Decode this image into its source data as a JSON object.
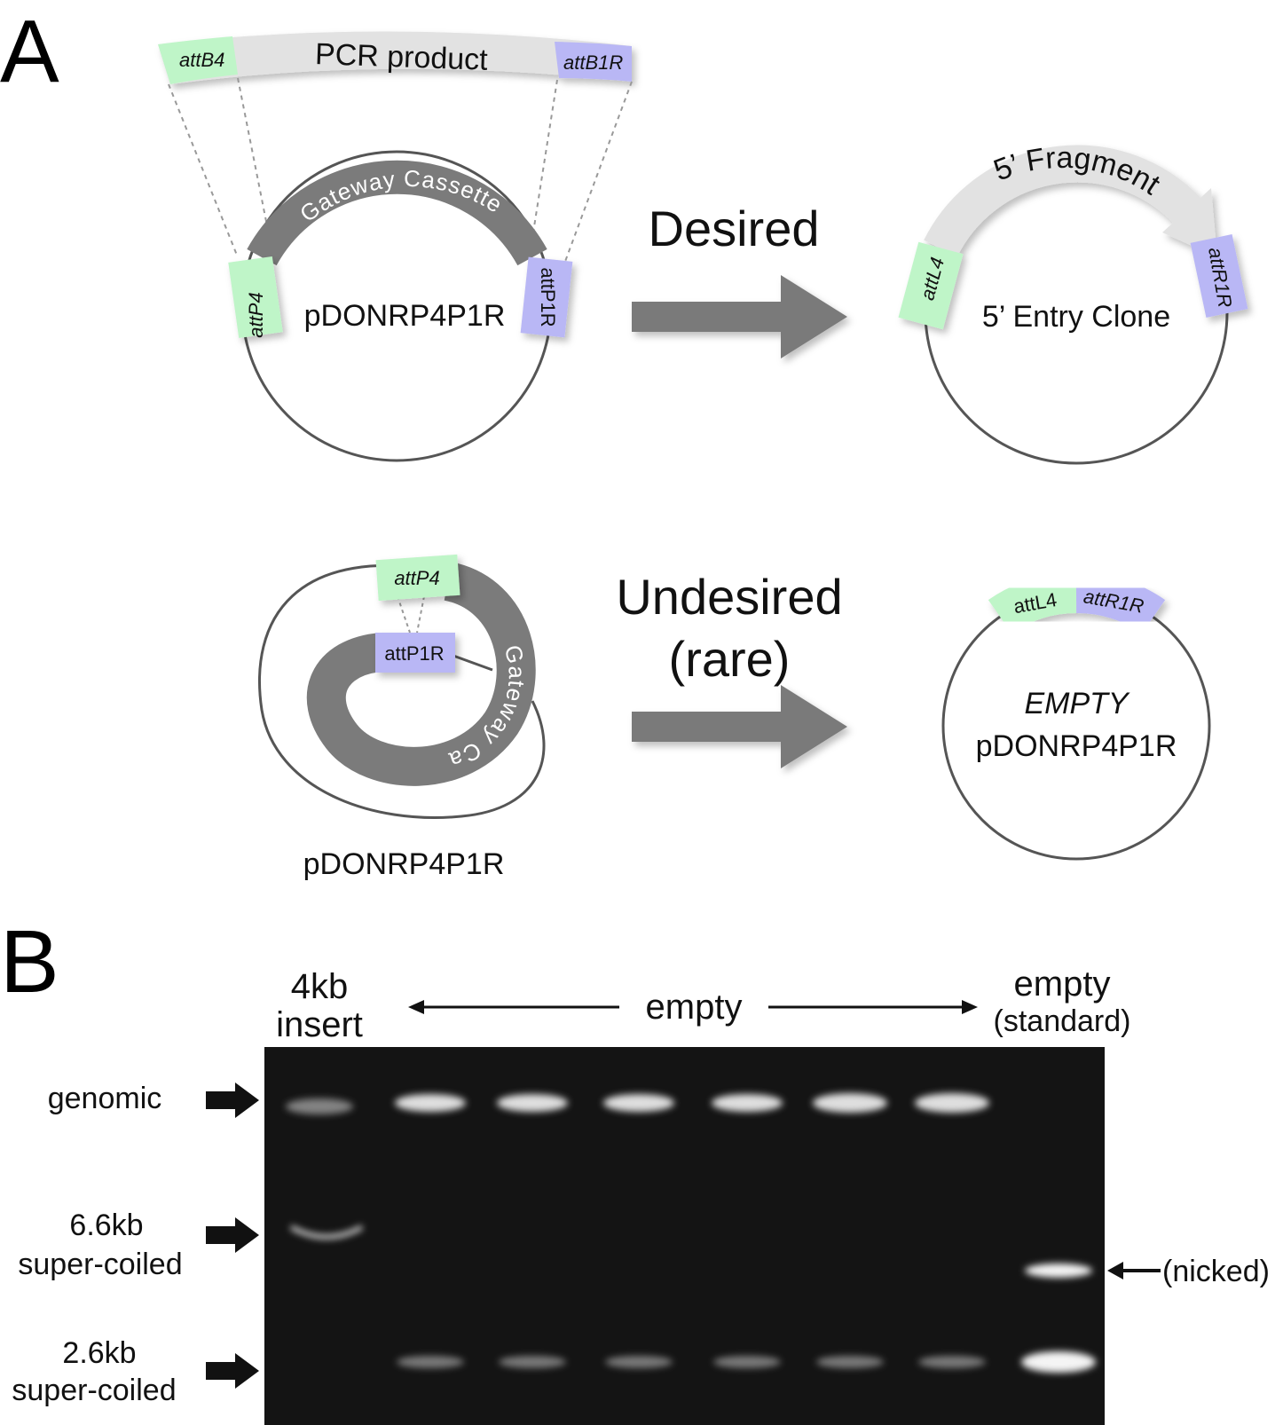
{
  "panel_a": {
    "label": "A",
    "pcr_product": {
      "label": "PCR product",
      "left_site": "attB4",
      "right_site": "attB1R"
    },
    "donor": {
      "name": "pDONRP4P1R",
      "cassette": "Gateway Cassette",
      "left_site": "attP4",
      "right_site": "attP1R"
    },
    "desired_arrow": "Desired",
    "entry_clone": {
      "name": "5’ Entry Clone",
      "fragment": "5’ Fragment",
      "left_site": "attL4",
      "right_site": "attR1R"
    },
    "undesired_arrow_line1": "Undesired",
    "undesired_arrow_line2": "(rare)",
    "coiled_donor": {
      "name": "pDONRP4P1R",
      "cassette": "Gateway Cassette",
      "top_site": "attP4",
      "inner_site": "attP1R"
    },
    "empty_product": {
      "line1": "EMPTY",
      "line2": "pDONRP4P1R",
      "left_site": "attL4",
      "right_site": "attR1R"
    }
  },
  "panel_b": {
    "label": "B",
    "lane_first_line1": "4kb",
    "lane_first_line2": "insert",
    "lane_middle": "empty",
    "lane_last_line1": "empty",
    "lane_last_line2": "(standard)",
    "bands": {
      "genomic": "genomic",
      "band_66_line1": "6.6kb",
      "band_66_line2": "super-coiled",
      "band_26_line1": "2.6kb",
      "band_26_line2": "super-coiled",
      "nicked": "(nicked)"
    }
  },
  "colors": {
    "att_green": "#bff5c8",
    "att_blue": "#b9b7f5",
    "cassette_gray": "#7b7b7b",
    "pcr_gray": "#e2e2e2",
    "arrow_gray": "#7a7a7a",
    "gel_bg": "#141414"
  }
}
